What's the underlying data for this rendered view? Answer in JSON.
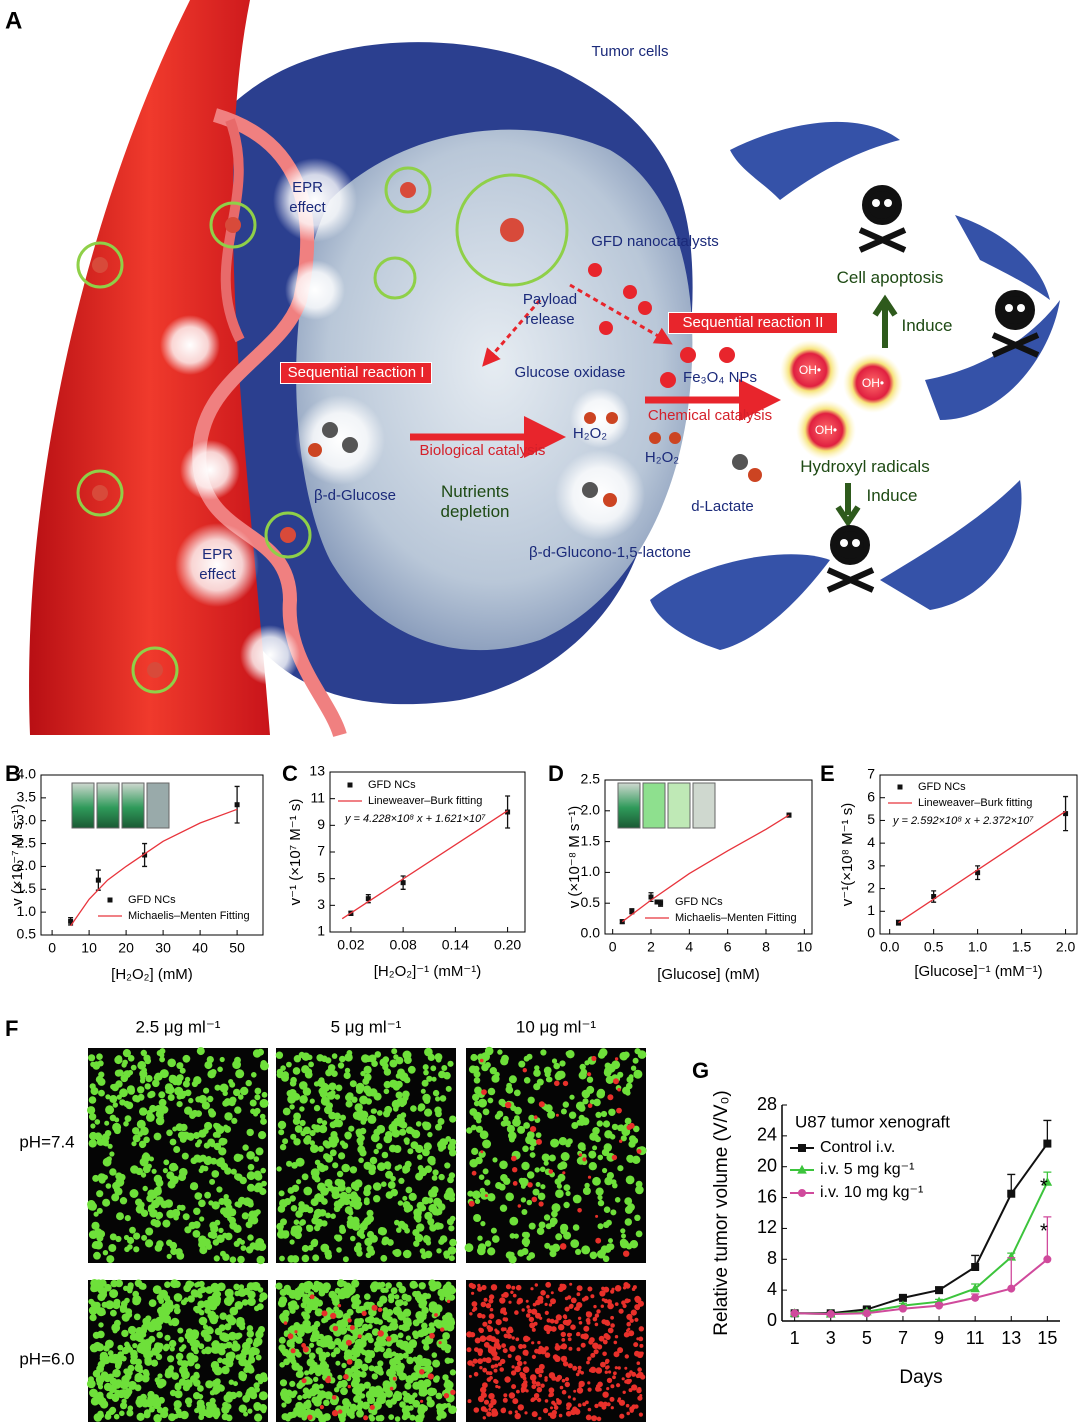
{
  "diagram": {
    "label": "A",
    "texts": [
      "Tumor cells",
      "EPR effect",
      "EPR effect",
      "GFD nanocatalysts",
      "Payload release",
      "Sequential reaction I",
      "Sequential reaction II",
      "Glucose oxidase",
      "Fe₃O₄ NPs",
      "H₂O₂",
      "H₂O₂",
      "Chemical catalysis",
      "Biological catalysis",
      "β-d-Glucose",
      "Nutrients depletion",
      "d-Lactate",
      "β-d-Glucono-1,5-lactone",
      "Hydroxyl radicals",
      "Cell apoptosis",
      "Induce",
      "Induce",
      "OH•",
      "OH•",
      "OH•"
    ]
  },
  "micrographs": {
    "label": "F",
    "columns": [
      "2.5 μg ml⁻¹",
      "5 μg ml⁻¹",
      "10 μg ml⁻¹"
    ],
    "rows": [
      "pH=7.4",
      "pH=6.0"
    ]
  },
  "chart_data": [
    {
      "label": "B",
      "type": "scatter",
      "frame": true,
      "error_bars": "both",
      "xlabel": "[H₂O₂] (mM)",
      "ylabel": "v (×10⁻⁷ M s⁻¹)",
      "xlim": [
        -3,
        57
      ],
      "xticks": [
        0,
        10,
        20,
        30,
        40,
        50
      ],
      "ylim": [
        0.5,
        4.0
      ],
      "yticks": [
        0.5,
        {
          "value": 1,
          "label": "1.0"
        },
        1.5,
        {
          "value": 2,
          "label": "2.0"
        },
        2.5,
        {
          "value": 3,
          "label": "3.0"
        },
        3.5,
        {
          "value": 4,
          "label": "4.0"
        }
      ],
      "series": [
        {
          "name": "GFD NCs",
          "mode": "markers",
          "marker": "square",
          "color": "#111111",
          "x": [
            5,
            12.5,
            25,
            50
          ],
          "values": [
            0.8,
            1.7,
            2.25,
            3.35
          ],
          "errors": [
            0.08,
            0.22,
            0.25,
            0.4
          ]
        },
        {
          "name": "Michaelis–Menten Fitting",
          "mode": "line",
          "color": "#e8343c",
          "x": [
            5,
            10,
            15,
            20,
            30,
            40,
            50
          ],
          "values": [
            0.7,
            1.28,
            1.7,
            2.0,
            2.55,
            2.95,
            3.25
          ]
        }
      ]
    },
    {
      "label": "C",
      "type": "scatter",
      "frame": true,
      "error_bars": "both",
      "xlabel": "[H₂O₂]⁻¹ (mM⁻¹)",
      "ylabel": "v⁻¹ (×10⁷ M⁻¹ s)",
      "annotations": [
        "y = 4.228×10⁸ x + 1.621×10⁷"
      ],
      "xlim": [
        -0.004,
        0.22
      ],
      "xticks": [
        0.02,
        0.08,
        0.14,
        {
          "value": 0.2,
          "label": "0.20"
        }
      ],
      "ylim": [
        1,
        13
      ],
      "yticks": [
        1,
        3,
        5,
        7,
        9,
        11,
        13
      ],
      "series": [
        {
          "name": "GFD NCs",
          "mode": "markers",
          "marker": "square",
          "color": "#111111",
          "x": [
            0.02,
            0.04,
            0.08,
            0.2
          ],
          "values": [
            2.4,
            3.5,
            4.7,
            10.0
          ],
          "errors": [
            0.15,
            0.3,
            0.5,
            1.2
          ]
        },
        {
          "name": "Lineweaver–Burk fitting",
          "mode": "line",
          "color": "#e8343c",
          "x": [
            0.01,
            0.2
          ],
          "values": [
            2.0,
            10.1
          ]
        }
      ]
    },
    {
      "label": "D",
      "type": "scatter",
      "frame": true,
      "error_bars": "both",
      "xlabel": "[Glucose] (mM)",
      "ylabel": "v (×10⁻⁸ M s⁻¹)",
      "xlim": [
        -0.4,
        10.4
      ],
      "xticks": [
        0,
        2,
        4,
        6,
        8,
        10
      ],
      "ylim": [
        0,
        2.5
      ],
      "yticks": [
        {
          "value": 0,
          "label": "0.0"
        },
        0.5,
        {
          "value": 1,
          "label": "1.0"
        },
        1.5,
        {
          "value": 2,
          "label": "2.0"
        },
        2.5
      ],
      "series": [
        {
          "name": "GFD NCs",
          "mode": "markers",
          "marker": "square",
          "color": "#111111",
          "x": [
            0.5,
            1,
            2,
            2.5,
            9.2
          ],
          "values": [
            0.2,
            0.37,
            0.6,
            0.5,
            1.93
          ],
          "errors": [
            0.03,
            0.04,
            0.07,
            0.05,
            0.03
          ]
        },
        {
          "name": "Michaelis–Menten Fitting",
          "mode": "line",
          "color": "#e8343c",
          "x": [
            0.5,
            2,
            4,
            6,
            8,
            9.2
          ],
          "values": [
            0.2,
            0.55,
            0.98,
            1.35,
            1.7,
            1.93
          ]
        }
      ]
    },
    {
      "label": "E",
      "type": "scatter",
      "frame": true,
      "error_bars": "both",
      "xlabel": "[Glucose]⁻¹ (mM⁻¹)",
      "ylabel": "v⁻¹(×10⁸ M⁻¹ s)",
      "annotations": [
        "y = 2.592×10⁸ x + 2.372×10⁷"
      ],
      "xlim": [
        -0.11,
        2.13
      ],
      "xticks": [
        {
          "value": 0,
          "label": "0.0"
        },
        0.5,
        {
          "value": 1,
          "label": "1.0"
        },
        1.5,
        {
          "value": 2,
          "label": "2.0"
        }
      ],
      "ylim": [
        0,
        7
      ],
      "yticks": [
        0,
        1,
        2,
        3,
        4,
        5,
        6,
        7
      ],
      "series": [
        {
          "name": "GFD NCs",
          "mode": "markers",
          "marker": "square",
          "color": "#111111",
          "x": [
            0.1,
            0.5,
            1,
            2
          ],
          "values": [
            0.5,
            1.65,
            2.7,
            5.3
          ],
          "errors": [
            0.1,
            0.25,
            0.3,
            0.75
          ]
        },
        {
          "name": "Lineweaver–Burk fitting",
          "mode": "line",
          "color": "#e8343c",
          "x": [
            0.1,
            2
          ],
          "values": [
            0.5,
            5.4
          ]
        }
      ]
    },
    {
      "label": "G",
      "type": "line",
      "frame": false,
      "error_bars": "upper",
      "title": "U87 tumor xenograft",
      "xlabel": "Days",
      "ylabel": "Relative tumor volume (V/V₀)",
      "annotations": [
        "*",
        "*"
      ],
      "x": [
        1,
        3,
        5,
        7,
        9,
        11,
        13,
        15
      ],
      "xlim": [
        0.3,
        15.7
      ],
      "xticks": [
        1,
        3,
        5,
        7,
        9,
        11,
        13,
        15
      ],
      "ylim": [
        0,
        28
      ],
      "yticks": [
        0,
        4,
        8,
        12,
        16,
        20,
        24,
        28
      ],
      "series": [
        {
          "name": "Control i.v.",
          "mode": "lines+markers",
          "marker": "square",
          "color": "#111111",
          "values": [
            1,
            1,
            1.5,
            3,
            4,
            7,
            16.5,
            23
          ],
          "errors": [
            0.2,
            0.2,
            0.3,
            0.3,
            0.4,
            1.5,
            2.5,
            3
          ]
        },
        {
          "name": "i.v. 5 mg kg⁻¹",
          "mode": "lines+markers",
          "marker": "triangle",
          "color": "#3cc43c",
          "values": [
            1,
            0.9,
            1.2,
            2,
            2.5,
            4.2,
            8.3,
            18
          ],
          "errors": [
            0.1,
            0.1,
            0.2,
            0.3,
            0.3,
            0.6,
            0.5,
            1.3
          ]
        },
        {
          "name": "i.v. 10 mg kg⁻¹",
          "mode": "lines+markers",
          "marker": "circle",
          "color": "#d04a9c",
          "values": [
            1,
            0.9,
            1,
            1.6,
            2,
            3,
            4.2,
            8
          ],
          "errors": [
            0.1,
            0.1,
            0.1,
            0.2,
            0.3,
            0.5,
            4,
            5.5
          ]
        }
      ]
    }
  ]
}
